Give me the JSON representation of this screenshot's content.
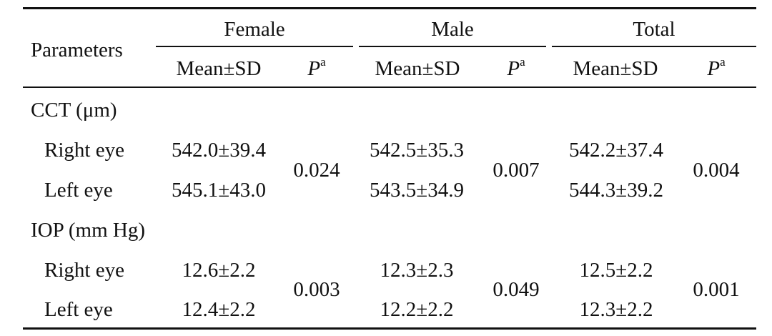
{
  "table": {
    "header": {
      "parameters": "Parameters",
      "groups": [
        "Female",
        "Male",
        "Total"
      ],
      "mean_sd": "Mean±SD",
      "p_symbol": "P",
      "p_superscript": "a"
    },
    "sections": [
      {
        "label": "CCT (μm)",
        "rows": [
          {
            "label": "Right eye",
            "female": "542.0±39.4",
            "male": "542.5±35.3",
            "total": "542.2±37.4"
          },
          {
            "label": "Left eye",
            "female": "545.1±43.0",
            "male": "543.5±34.9",
            "total": "544.3±39.2"
          }
        ],
        "p": {
          "female": "0.024",
          "male": "0.007",
          "total": "0.004"
        }
      },
      {
        "label": "IOP (mm Hg)",
        "rows": [
          {
            "label": "Right eye",
            "female": "12.6±2.2",
            "male": "12.3±2.3",
            "total": "12.5±2.2"
          },
          {
            "label": "Left eye",
            "female": "12.4±2.2",
            "male": "12.2±2.2",
            "total": "12.3±2.2"
          }
        ],
        "p": {
          "female": "0.003",
          "male": "0.049",
          "total": "0.001"
        }
      }
    ]
  }
}
